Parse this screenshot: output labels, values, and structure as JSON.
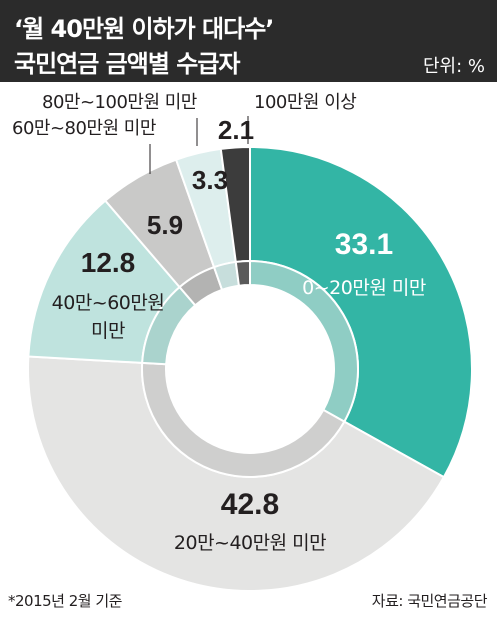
{
  "header": {
    "title_line1": "‘월 40만원 이하가 대다수’",
    "title_line2": "국민연금 금액별 수급자",
    "unit": "단위: %"
  },
  "footer": {
    "note": "*2015년 2월 기준",
    "source": "자료: 국민연금공단"
  },
  "chart_data": {
    "type": "pie",
    "donut": true,
    "categories": [
      "0~20만원 미만",
      "20만~40만원 미만",
      "40만~60만원 미만",
      "60만~80만원 미만",
      "80만~100만원 미만",
      "100만원 이상"
    ],
    "values": [
      33.1,
      42.8,
      12.8,
      5.9,
      3.3,
      2.1
    ],
    "value_labels": [
      "33.1",
      "42.8",
      "12.8",
      "5.9",
      "3.3",
      "2.1"
    ],
    "category_labels": [
      [
        "0~20만원 미만"
      ],
      [
        "20만~40만원 미만"
      ],
      [
        "40만~60만원",
        "미만"
      ],
      [
        "60만~80만원 미만"
      ],
      [
        "80만~100만원 미만"
      ],
      [
        "100만원 이상"
      ]
    ],
    "colors": [
      "#33b5a5",
      "#e4e4e3",
      "#bfe3de",
      "#c9c9c8",
      "#ddeeed",
      "#3c3c3c"
    ],
    "inner_ring_colors": [
      "#8fcdc4",
      "#cfcfce",
      "#aad3cd",
      "#b3b3b2",
      "#c7dedc",
      "#5a5a5a"
    ],
    "label_colors": [
      "#ffffff",
      "#231f20",
      "#231f20",
      "#231f20",
      "#231f20",
      "#231f20"
    ],
    "start_angle_deg": 0,
    "direction": "clockwise"
  }
}
